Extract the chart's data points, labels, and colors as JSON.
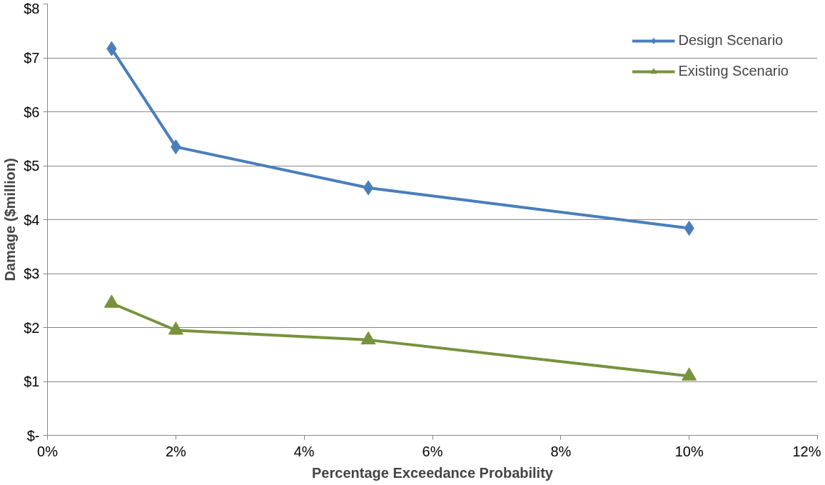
{
  "chart_data": {
    "type": "line",
    "xlabel": "Percentage Exceedance Probability",
    "ylabel": "Damage ($million)",
    "x": [
      1,
      2,
      5,
      10
    ],
    "series": [
      {
        "name": "Design Scenario",
        "color": "#4a7ebb",
        "marker": "diamond",
        "values": [
          7.17,
          5.35,
          4.59,
          3.84
        ]
      },
      {
        "name": "Existing Scenario",
        "color": "#77933c",
        "marker": "triangle",
        "values": [
          2.45,
          1.95,
          1.77,
          1.1
        ]
      }
    ],
    "xlim": [
      0,
      12
    ],
    "xticks": [
      {
        "value": 0,
        "label": "0%"
      },
      {
        "value": 2,
        "label": "2%"
      },
      {
        "value": 4,
        "label": "4%"
      },
      {
        "value": 6,
        "label": "6%"
      },
      {
        "value": 8,
        "label": "8%"
      },
      {
        "value": 10,
        "label": "10%"
      },
      {
        "value": 12,
        "label": "12%"
      }
    ],
    "ylim": [
      0,
      8
    ],
    "yticks": [
      {
        "value": 0,
        "label": "$-"
      },
      {
        "value": 1,
        "label": "$1"
      },
      {
        "value": 2,
        "label": "$2"
      },
      {
        "value": 3,
        "label": "$3"
      },
      {
        "value": 4,
        "label": "$4"
      },
      {
        "value": 5,
        "label": "$5"
      },
      {
        "value": 6,
        "label": "$6"
      },
      {
        "value": 7,
        "label": "$7"
      },
      {
        "value": 8,
        "label": "$8"
      }
    ],
    "grid": "y",
    "legend": "top right",
    "line_style": "solid"
  }
}
